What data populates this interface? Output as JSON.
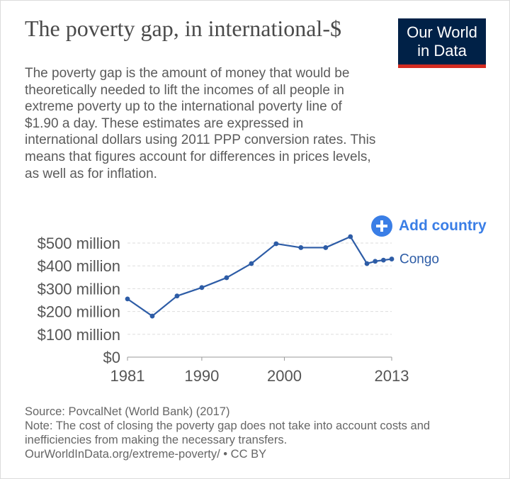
{
  "header": {
    "title": "The poverty gap, in international-$",
    "subtitle": "The poverty gap is the amount of money that would be theoretically needed to lift the incomes of all people in extreme poverty up to the international poverty line of $1.90 a day. These estimates are expressed in international dollars using 2011 PPP conversion rates. This means that figures account for differences in prices levels, as well as for inflation."
  },
  "logo": {
    "line1": "Our World",
    "line2": "in Data"
  },
  "controls": {
    "add_country_label": "Add country"
  },
  "footer": {
    "source": "Source: PovcalNet (World Bank) (2017)",
    "note": "Note: The cost of closing the poverty gap does not take into account costs and inefficiencies from making the necessary transfers.",
    "url": "OurWorldInData.org/extreme-poverty/ • CC BY"
  },
  "colors": {
    "series": "#2d5ca6",
    "accent": "#3a7ee6",
    "logo_bg": "#002147",
    "logo_bar": "#d42b21",
    "grid": "#dddddd"
  },
  "chart_data": {
    "type": "line",
    "title": "The poverty gap, in international-$",
    "xlim": [
      1981,
      2013
    ],
    "ylim": [
      0,
      500000000
    ],
    "y_ticks": [
      {
        "value": 0,
        "label": "$0"
      },
      {
        "value": 100000000,
        "label": "$100 million"
      },
      {
        "value": 200000000,
        "label": "$200 million"
      },
      {
        "value": 300000000,
        "label": "$300 million"
      },
      {
        "value": 400000000,
        "label": "$400 million"
      },
      {
        "value": 500000000,
        "label": "$500 million"
      }
    ],
    "x_ticks": [
      {
        "value": 1981,
        "label": "1981"
      },
      {
        "value": 1990,
        "label": "1990"
      },
      {
        "value": 2000,
        "label": "2000"
      },
      {
        "value": 2013,
        "label": "2013"
      }
    ],
    "grid": true,
    "series": [
      {
        "name": "Congo",
        "x": [
          1981,
          1984,
          1987,
          1990,
          1993,
          1996,
          1999,
          2002,
          2005,
          2008,
          2010,
          2011,
          2012,
          2013
        ],
        "y": [
          255000000,
          180000000,
          268000000,
          305000000,
          348000000,
          410000000,
          497000000,
          480000000,
          480000000,
          528000000,
          410000000,
          420000000,
          425000000,
          430000000
        ]
      }
    ]
  }
}
